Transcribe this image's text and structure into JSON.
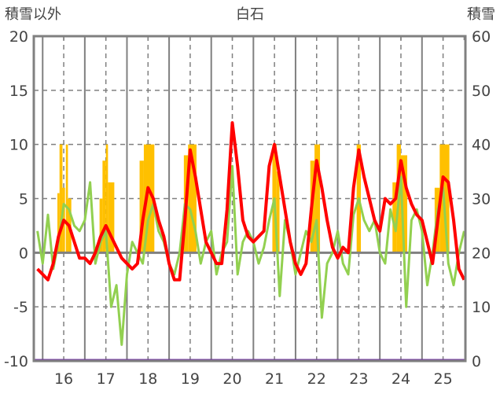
{
  "chart_data": {
    "type": "line",
    "title": "白石",
    "ylabel_left": "積雪以外",
    "ylabel_right": "積雪",
    "ylim_left": [
      -10,
      20
    ],
    "ylim_right": [
      0,
      60
    ],
    "yticks_left": [
      "20",
      "15",
      "10",
      "5",
      "0",
      "-5",
      "-10"
    ],
    "yticks_right": [
      "60",
      "50",
      "40",
      "30",
      "20",
      "10",
      "0"
    ],
    "xlim": [
      15.29,
      25.53
    ],
    "xticks": [
      "16",
      "17",
      "18",
      "19",
      "20",
      "21",
      "22",
      "23",
      "24",
      "25"
    ],
    "x_start": 15.375,
    "x_step": 0.125,
    "series": [
      {
        "name": "red",
        "color": "#ff0000",
        "axis": "left",
        "values": [
          -1.5,
          -2,
          -2.5,
          -1,
          1.5,
          3,
          2.5,
          1,
          -0.5,
          -0.5,
          -1,
          0,
          1.5,
          2.5,
          1.5,
          0.5,
          -0.5,
          -1,
          -1.5,
          -1,
          3,
          6,
          5,
          3,
          1.5,
          -1,
          -2.5,
          -2.5,
          3,
          9.5,
          7,
          4,
          1,
          0,
          -1,
          -1,
          4,
          12,
          8,
          3,
          1.5,
          1,
          1.5,
          2,
          8,
          10,
          7,
          4,
          1,
          -1,
          -2,
          -1,
          4,
          8.5,
          6,
          3,
          0.5,
          -0.5,
          0.5,
          0,
          6,
          9.5,
          7,
          5,
          3,
          2,
          5,
          4.5,
          5,
          8.5,
          6,
          4.5,
          3.5,
          3,
          1,
          -1,
          3,
          7,
          6.5,
          3,
          -1.5,
          -2.5
        ]
      },
      {
        "name": "green",
        "color": "#92d050",
        "axis": "left",
        "values": [
          2,
          -1,
          3.5,
          -1.5,
          1,
          4.5,
          4,
          2.5,
          2,
          3,
          6.5,
          -1,
          1,
          2,
          -5,
          -3,
          -8.5,
          -2,
          1,
          0,
          -1,
          3,
          4.5,
          2,
          1,
          -1,
          -2,
          0,
          4.5,
          4,
          2,
          -1,
          1,
          2,
          -2,
          0,
          1,
          8,
          -2,
          1,
          2,
          1,
          -1,
          0.5,
          3,
          5,
          -4,
          3,
          1,
          -2,
          0,
          2,
          1,
          3,
          -6,
          -1,
          0,
          2,
          -1,
          -2,
          3.5,
          5,
          3,
          2,
          3,
          0,
          -1,
          4,
          2,
          7,
          -5,
          3,
          4,
          2,
          -3,
          0,
          4,
          6,
          -1,
          -3,
          0,
          2
        ]
      }
    ],
    "snow_bars": {
      "color": "#ffc000",
      "axis": "right",
      "blocks": [
        [
          15.85,
          15.9,
          31
        ],
        [
          15.9,
          15.97,
          40
        ],
        [
          15.97,
          16.03,
          32
        ],
        [
          16.05,
          16.1,
          40
        ],
        [
          16.1,
          16.18,
          30
        ],
        [
          16.85,
          16.92,
          30
        ],
        [
          16.92,
          17.0,
          37
        ],
        [
          17.0,
          17.05,
          40
        ],
        [
          17.05,
          17.2,
          33
        ],
        [
          17.8,
          17.9,
          37
        ],
        [
          17.9,
          18.15,
          40
        ],
        [
          18.85,
          18.95,
          38
        ],
        [
          18.95,
          19.15,
          40
        ],
        [
          20.95,
          21.05,
          40
        ],
        [
          21.05,
          21.12,
          35
        ],
        [
          21.85,
          21.95,
          37
        ],
        [
          21.95,
          22.08,
          40
        ],
        [
          22.95,
          23.05,
          40
        ],
        [
          23.8,
          23.9,
          33
        ],
        [
          23.9,
          24.0,
          40
        ],
        [
          24.0,
          24.15,
          38
        ],
        [
          24.8,
          24.92,
          32
        ],
        [
          24.92,
          25.15,
          40
        ]
      ]
    },
    "snow_depth_line": {
      "color": "#7030a0",
      "value": 0
    }
  }
}
